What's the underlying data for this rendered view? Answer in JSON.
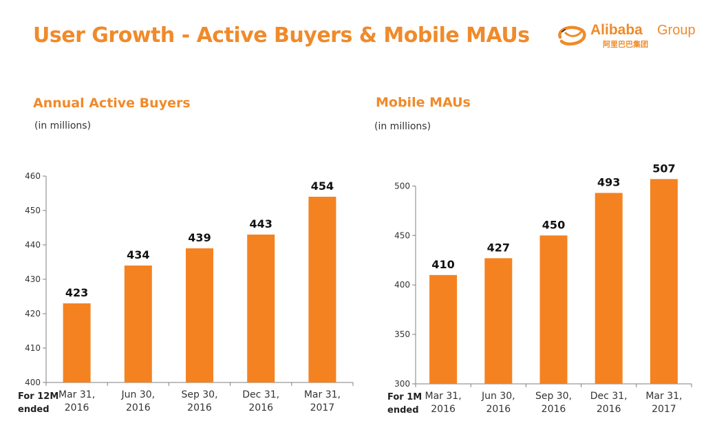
{
  "header": {
    "title": "User Growth - Active Buyers & Mobile MAUs",
    "logo_text": "Alibaba",
    "logo_group": "Group",
    "logo_chinese": "阿里巴巴集团"
  },
  "colors": {
    "accent": "#f08a2a",
    "bar": "#f58220",
    "axis": "#7f7f7f"
  },
  "icons": {
    "logo": "alibaba-smile-logo-icon"
  },
  "panels": [
    {
      "title": "Annual Active Buyers",
      "unit": "(in millions)",
      "period_label": [
        "For 12M",
        "ended"
      ]
    },
    {
      "title": "Mobile MAUs",
      "unit": "(in millions)",
      "period_label": [
        "For 1M",
        "ended"
      ]
    }
  ],
  "chart_data": [
    {
      "type": "bar",
      "title": "Annual Active Buyers",
      "subtitle": "(in millions)",
      "xlabel": "",
      "ylabel": "",
      "categories": [
        [
          "Mar 31,",
          "2016"
        ],
        [
          "Jun 30,",
          "2016"
        ],
        [
          "Sep 30,",
          "2016"
        ],
        [
          "Dec 31,",
          "2016"
        ],
        [
          "Mar 31,",
          "2017"
        ]
      ],
      "values": [
        423,
        434,
        439,
        443,
        454
      ],
      "ylim": [
        400,
        460
      ],
      "yticks": [
        400,
        410,
        420,
        430,
        440,
        450,
        460
      ],
      "data_labels": true,
      "grid": false,
      "legend": "none"
    },
    {
      "type": "bar",
      "title": "Mobile MAUs",
      "subtitle": "(in millions)",
      "xlabel": "",
      "ylabel": "",
      "categories": [
        [
          "Mar 31,",
          "2016"
        ],
        [
          "Jun 30,",
          "2016"
        ],
        [
          "Sep 30,",
          "2016"
        ],
        [
          "Dec 31,",
          "2016"
        ],
        [
          "Mar 31,",
          "2017"
        ]
      ],
      "values": [
        410,
        427,
        450,
        493,
        507
      ],
      "ylim": [
        300,
        510
      ],
      "yticks": [
        300,
        350,
        400,
        450,
        500
      ],
      "data_labels": true,
      "grid": false,
      "legend": "none"
    }
  ]
}
